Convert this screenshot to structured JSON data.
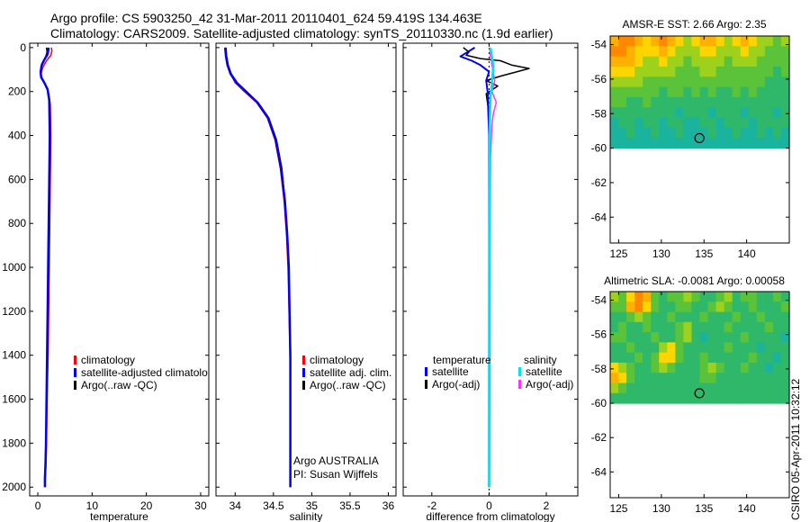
{
  "header": {
    "title_line1": "Argo profile: CS 5903250_42 31-Mar-2011 20110401_624 59.419S 134.463E",
    "title_line2": "Climatology: CARS2009. Satellite-adjusted climatology: synTS_20110330.nc (1.9d earlier)"
  },
  "colors": {
    "climatology": "#ff0000",
    "satellite": "#0000ff",
    "argo": "#000000",
    "sal_satellite": "#00e5e5",
    "sal_argo": "#ff33ff"
  },
  "credit": "CSIRO 05-Apr-2011 10:32:12",
  "chart_data": [
    {
      "id": "temperature",
      "type": "line",
      "xlabel": "temperature",
      "ylabel": "",
      "xlim": [
        -1.5,
        31.5
      ],
      "ylim": [
        2040,
        -20
      ],
      "xticks": [
        0,
        10,
        20,
        30
      ],
      "xticklabels": [
        "0",
        "10",
        "20",
        "30"
      ],
      "yticks": [
        0,
        200,
        400,
        600,
        800,
        1000,
        1200,
        1400,
        1600,
        1800,
        2000
      ],
      "yticklabels": [
        "0",
        "200",
        "400",
        "600",
        "800",
        "1000",
        "1200",
        "1400",
        "1600",
        "1800",
        "2000"
      ],
      "legend": [
        "climatology",
        "satellite-adjusted climatology",
        "Argo(..raw -QC)"
      ],
      "legend_display": [
        "climatology",
        "satellite-adjusted climatolo",
        "Argo(..raw -QC)"
      ],
      "series": [
        {
          "name": "climatology",
          "color": "#ff0000",
          "width": 1.5,
          "x": [
            2.5,
            2.6,
            2.4,
            1.6,
            0.9,
            0.6,
            0.7,
            1.3,
            1.9,
            2.3,
            2.4,
            2.3,
            2.2,
            2.1,
            2.0,
            1.9,
            1.7,
            1.6,
            1.5,
            1.4,
            1.3
          ],
          "y": [
            0,
            15,
            35,
            60,
            90,
            120,
            140,
            165,
            200,
            260,
            400,
            600,
            800,
            1000,
            1200,
            1400,
            1600,
            1800,
            1900,
            1950,
            2000
          ]
        },
        {
          "name": "Argo(..raw -QC)",
          "color": "#000000",
          "width": 1.5,
          "x": [
            1.6,
            1.7,
            1.4,
            0.8,
            0.5,
            0.6,
            1.2,
            1.8,
            2.2,
            2.3,
            2.2,
            2.1,
            2.0,
            1.9,
            1.8,
            1.6,
            1.5,
            1.4,
            1.3,
            1.3
          ],
          "y": [
            0,
            20,
            45,
            70,
            110,
            135,
            160,
            190,
            240,
            400,
            600,
            800,
            1000,
            1200,
            1400,
            1600,
            1800,
            1900,
            1960,
            2000
          ]
        },
        {
          "name": "satellite-adjusted climatology",
          "color": "#0000ff",
          "width": 2.5,
          "x": [
            2.0,
            1.8,
            1.2,
            0.7,
            0.5,
            0.6,
            1.2,
            1.8,
            2.1,
            2.2,
            2.1,
            2.0,
            1.9,
            1.8,
            1.7,
            1.6,
            1.5,
            1.4,
            1.3,
            1.3
          ],
          "y": [
            0,
            30,
            55,
            80,
            110,
            135,
            160,
            190,
            240,
            400,
            600,
            800,
            1000,
            1200,
            1400,
            1600,
            1800,
            1900,
            1960,
            2000
          ]
        }
      ]
    },
    {
      "id": "salinity",
      "type": "line",
      "xlabel": "salinity",
      "ylabel": "",
      "xlim": [
        33.75,
        36.1
      ],
      "ylim": [
        2040,
        -20
      ],
      "xticks": [
        34,
        34.5,
        35,
        35.5,
        36
      ],
      "xticklabels": [
        "34",
        "34.5",
        "35",
        "35.5",
        "36"
      ],
      "yticks": [
        0,
        200,
        400,
        600,
        800,
        1000,
        1200,
        1400,
        1600,
        1800,
        2000
      ],
      "legend": [
        "climatology",
        "satellite adj. clim.",
        "Argo(..raw -QC)"
      ],
      "annotation": [
        "Argo AUSTRALIA",
        "PI: Susan Wijffels"
      ],
      "series": [
        {
          "name": "climatology",
          "color": "#ff0000",
          "width": 1.5,
          "x": [
            33.87,
            33.88,
            33.9,
            33.94,
            34.0,
            34.12,
            34.28,
            34.42,
            34.52,
            34.59,
            34.64,
            34.67,
            34.69,
            34.7,
            34.71,
            34.72,
            34.72,
            34.72,
            34.72
          ],
          "y": [
            0,
            40,
            80,
            120,
            160,
            200,
            250,
            320,
            420,
            550,
            700,
            850,
            1000,
            1150,
            1300,
            1500,
            1700,
            1900,
            2000
          ]
        },
        {
          "name": "Argo(..raw -QC)",
          "color": "#000000",
          "width": 1.5,
          "x": [
            33.88,
            33.89,
            33.91,
            33.95,
            34.03,
            34.15,
            34.3,
            34.44,
            34.54,
            34.61,
            34.65,
            34.68,
            34.7,
            34.71,
            34.72,
            34.72,
            34.72,
            34.72
          ],
          "y": [
            0,
            40,
            80,
            120,
            160,
            200,
            250,
            320,
            420,
            550,
            700,
            850,
            1000,
            1200,
            1400,
            1600,
            1800,
            2000
          ]
        },
        {
          "name": "satellite adj. clim.",
          "color": "#0000ff",
          "width": 2.5,
          "x": [
            33.87,
            33.88,
            33.9,
            33.94,
            34.02,
            34.14,
            34.29,
            34.43,
            34.53,
            34.6,
            34.65,
            34.68,
            34.7,
            34.71,
            34.72,
            34.72,
            34.72,
            34.72
          ],
          "y": [
            0,
            40,
            80,
            120,
            160,
            200,
            250,
            320,
            420,
            550,
            700,
            850,
            1000,
            1200,
            1400,
            1600,
            1800,
            2000
          ]
        }
      ]
    },
    {
      "id": "difference",
      "type": "line",
      "xlabel": "difference from climatology",
      "ylabel": "",
      "xlim": [
        -3,
        3.1
      ],
      "ylim": [
        2040,
        -20
      ],
      "xticks": [
        -2,
        0,
        2
      ],
      "xticklabels": [
        "-2",
        "0",
        "2"
      ],
      "yticks": [
        0,
        200,
        400,
        600,
        800,
        1000,
        1200,
        1400,
        1600,
        1800,
        2000
      ],
      "legend_groups": [
        {
          "title": "temperature",
          "items": [
            "satellite",
            "Argo(-adj)"
          ]
        },
        {
          "title": "salinity",
          "items": [
            "satellite",
            "Argo(-adj)"
          ]
        }
      ],
      "series": [
        {
          "name": "temperature Argo(-adj)",
          "color": "#000000",
          "width": 1.5,
          "x": [
            -0.9,
            -0.7,
            -0.8,
            -0.3,
            0.4,
            0.8,
            1.4,
            0.4,
            -0.1,
            0.3,
            -0.1,
            0.0,
            0.0,
            0.0,
            0.0,
            0.0
          ],
          "y": [
            0,
            20,
            35,
            50,
            60,
            80,
            95,
            130,
            150,
            175,
            210,
            300,
            600,
            1000,
            1500,
            2000
          ]
        },
        {
          "name": "salinity Argo(-adj)",
          "color": "#ff33ff",
          "width": 1.5,
          "x": [
            0.02,
            0.05,
            0.1,
            0.2,
            0.1,
            0.25,
            0.15,
            0.1,
            0.05,
            0.03,
            0.02
          ],
          "y": [
            0,
            40,
            80,
            150,
            200,
            250,
            300,
            350,
            500,
            1000,
            2000
          ]
        },
        {
          "name": "temperature satellite",
          "color": "#0000ff",
          "width": 2,
          "x": [
            -0.5,
            -1.0,
            -0.6,
            -0.3,
            0.0,
            -0.1,
            -0.05,
            0.0,
            0.0,
            0.0
          ],
          "y": [
            0,
            40,
            60,
            80,
            110,
            150,
            200,
            400,
            1000,
            2000
          ]
        },
        {
          "name": "salinity satellite",
          "color": "#00e5e5",
          "width": 2.5,
          "x": [
            0.05,
            0.15,
            0.1,
            0.05,
            0.02,
            0.01,
            0.0
          ],
          "y": [
            0,
            80,
            160,
            220,
            350,
            1000,
            2000
          ]
        }
      ]
    },
    {
      "id": "sst_map",
      "type": "heatmap",
      "title": "AMSR-E SST: 2.66 Argo: 2.35",
      "xlim": [
        124,
        145
      ],
      "ylim": [
        -65.5,
        -53.5
      ],
      "data_ylim": [
        -60,
        -53.5
      ],
      "xticks": [
        125,
        130,
        135,
        140
      ],
      "yticks": [
        -54,
        -56,
        -58,
        -60,
        -62,
        -64
      ],
      "yticklabels": [
        "-54",
        "-56",
        "-58",
        "-60",
        "-62",
        "-64"
      ],
      "marker": {
        "lon": 134.463,
        "lat": -59.419
      },
      "grid": [
        [
          5,
          6,
          6,
          5,
          4,
          5,
          6,
          5,
          4,
          3,
          4,
          5,
          5,
          4,
          3,
          4,
          5,
          4,
          3,
          3,
          2,
          3
        ],
        [
          6,
          6,
          5,
          4,
          4,
          4,
          5,
          4,
          3,
          3,
          3,
          4,
          4,
          3,
          3,
          3,
          4,
          3,
          3,
          2,
          2,
          2
        ],
        [
          5,
          5,
          5,
          4,
          3,
          3,
          4,
          3,
          3,
          2,
          3,
          3,
          3,
          3,
          2,
          3,
          3,
          3,
          2,
          2,
          2,
          2
        ],
        [
          4,
          4,
          4,
          3,
          3,
          3,
          3,
          3,
          2,
          2,
          2,
          3,
          3,
          2,
          2,
          2,
          2,
          2,
          2,
          2,
          1,
          2
        ],
        [
          3,
          3,
          3,
          3,
          2,
          2,
          2,
          2,
          2,
          2,
          2,
          2,
          2,
          2,
          2,
          2,
          2,
          2,
          2,
          1,
          1,
          1
        ],
        [
          2,
          2,
          2,
          2,
          2,
          2,
          1,
          2,
          2,
          1,
          2,
          1,
          2,
          1,
          1,
          2,
          1,
          2,
          1,
          1,
          1,
          1
        ],
        [
          2,
          2,
          1,
          1,
          2,
          1,
          1,
          1,
          1,
          1,
          1,
          1,
          1,
          1,
          1,
          1,
          1,
          1,
          1,
          1,
          1,
          1
        ],
        [
          1,
          1,
          1,
          1,
          1,
          1,
          1,
          1,
          0,
          1,
          1,
          1,
          0,
          1,
          1,
          1,
          0,
          1,
          1,
          1,
          0,
          1
        ],
        [
          0,
          1,
          1,
          0,
          1,
          1,
          0,
          1,
          1,
          0,
          0,
          1,
          1,
          0,
          1,
          1,
          1,
          0,
          1,
          1,
          1,
          1
        ],
        [
          0,
          0,
          1,
          0,
          0,
          1,
          0,
          0,
          1,
          0,
          0,
          0,
          1,
          0,
          0,
          1,
          0,
          0,
          1,
          0,
          1,
          0
        ],
        [
          0,
          0,
          0,
          0,
          0,
          0,
          0,
          0,
          0,
          0,
          0,
          0,
          0,
          0,
          0,
          0,
          0,
          0,
          0,
          0,
          0,
          0
        ]
      ]
    },
    {
      "id": "sla_map",
      "type": "heatmap",
      "title": "Altimetric SLA: -0.0081 Argo: 0.00058",
      "xlim": [
        124,
        145
      ],
      "ylim": [
        -65.5,
        -53.5
      ],
      "data_ylim": [
        -60,
        -53.5
      ],
      "xticks": [
        125,
        130,
        135,
        140
      ],
      "yticks": [
        -54,
        -56,
        -58,
        -60,
        -62,
        -64
      ],
      "yticklabels": [
        "-54",
        "-56",
        "-58",
        "-60",
        "-62",
        "-64"
      ],
      "marker": {
        "lon": 134.463,
        "lat": -59.419
      },
      "grid": [
        [
          3,
          2,
          4,
          6,
          5,
          2,
          1,
          2,
          2,
          3,
          2,
          1,
          1,
          2,
          3,
          1,
          2,
          2,
          1,
          1,
          2,
          1
        ],
        [
          2,
          2,
          5,
          6,
          4,
          2,
          1,
          1,
          2,
          2,
          1,
          1,
          2,
          3,
          2,
          1,
          1,
          2,
          1,
          1,
          1,
          2
        ],
        [
          1,
          1,
          2,
          3,
          2,
          1,
          1,
          2,
          1,
          1,
          1,
          2,
          1,
          1,
          1,
          2,
          1,
          1,
          2,
          1,
          1,
          1
        ],
        [
          1,
          2,
          1,
          1,
          2,
          1,
          1,
          1,
          2,
          3,
          1,
          1,
          1,
          1,
          2,
          1,
          1,
          1,
          1,
          2,
          1,
          1
        ],
        [
          2,
          2,
          1,
          1,
          1,
          2,
          1,
          1,
          2,
          3,
          1,
          0,
          1,
          1,
          1,
          1,
          2,
          1,
          1,
          1,
          1,
          0
        ],
        [
          1,
          1,
          2,
          1,
          1,
          1,
          3,
          4,
          2,
          1,
          1,
          1,
          1,
          1,
          2,
          1,
          1,
          1,
          0,
          1,
          1,
          1
        ],
        [
          1,
          1,
          1,
          2,
          1,
          2,
          4,
          4,
          2,
          1,
          1,
          2,
          1,
          1,
          1,
          1,
          1,
          2,
          1,
          1,
          0,
          1
        ],
        [
          4,
          3,
          2,
          1,
          1,
          2,
          3,
          2,
          1,
          1,
          1,
          2,
          3,
          2,
          1,
          1,
          2,
          1,
          1,
          0,
          1,
          1
        ],
        [
          5,
          4,
          2,
          1,
          1,
          1,
          1,
          1,
          1,
          1,
          1,
          2,
          2,
          1,
          1,
          1,
          1,
          1,
          1,
          1,
          1,
          1
        ],
        [
          3,
          2,
          1,
          1,
          1,
          1,
          1,
          1,
          1,
          1,
          1,
          1,
          1,
          1,
          1,
          1,
          1,
          1,
          1,
          1,
          1,
          1
        ],
        [
          1,
          1,
          1,
          1,
          1,
          1,
          1,
          1,
          1,
          1,
          1,
          1,
          1,
          1,
          1,
          1,
          1,
          1,
          1,
          1,
          1,
          1
        ]
      ]
    }
  ]
}
